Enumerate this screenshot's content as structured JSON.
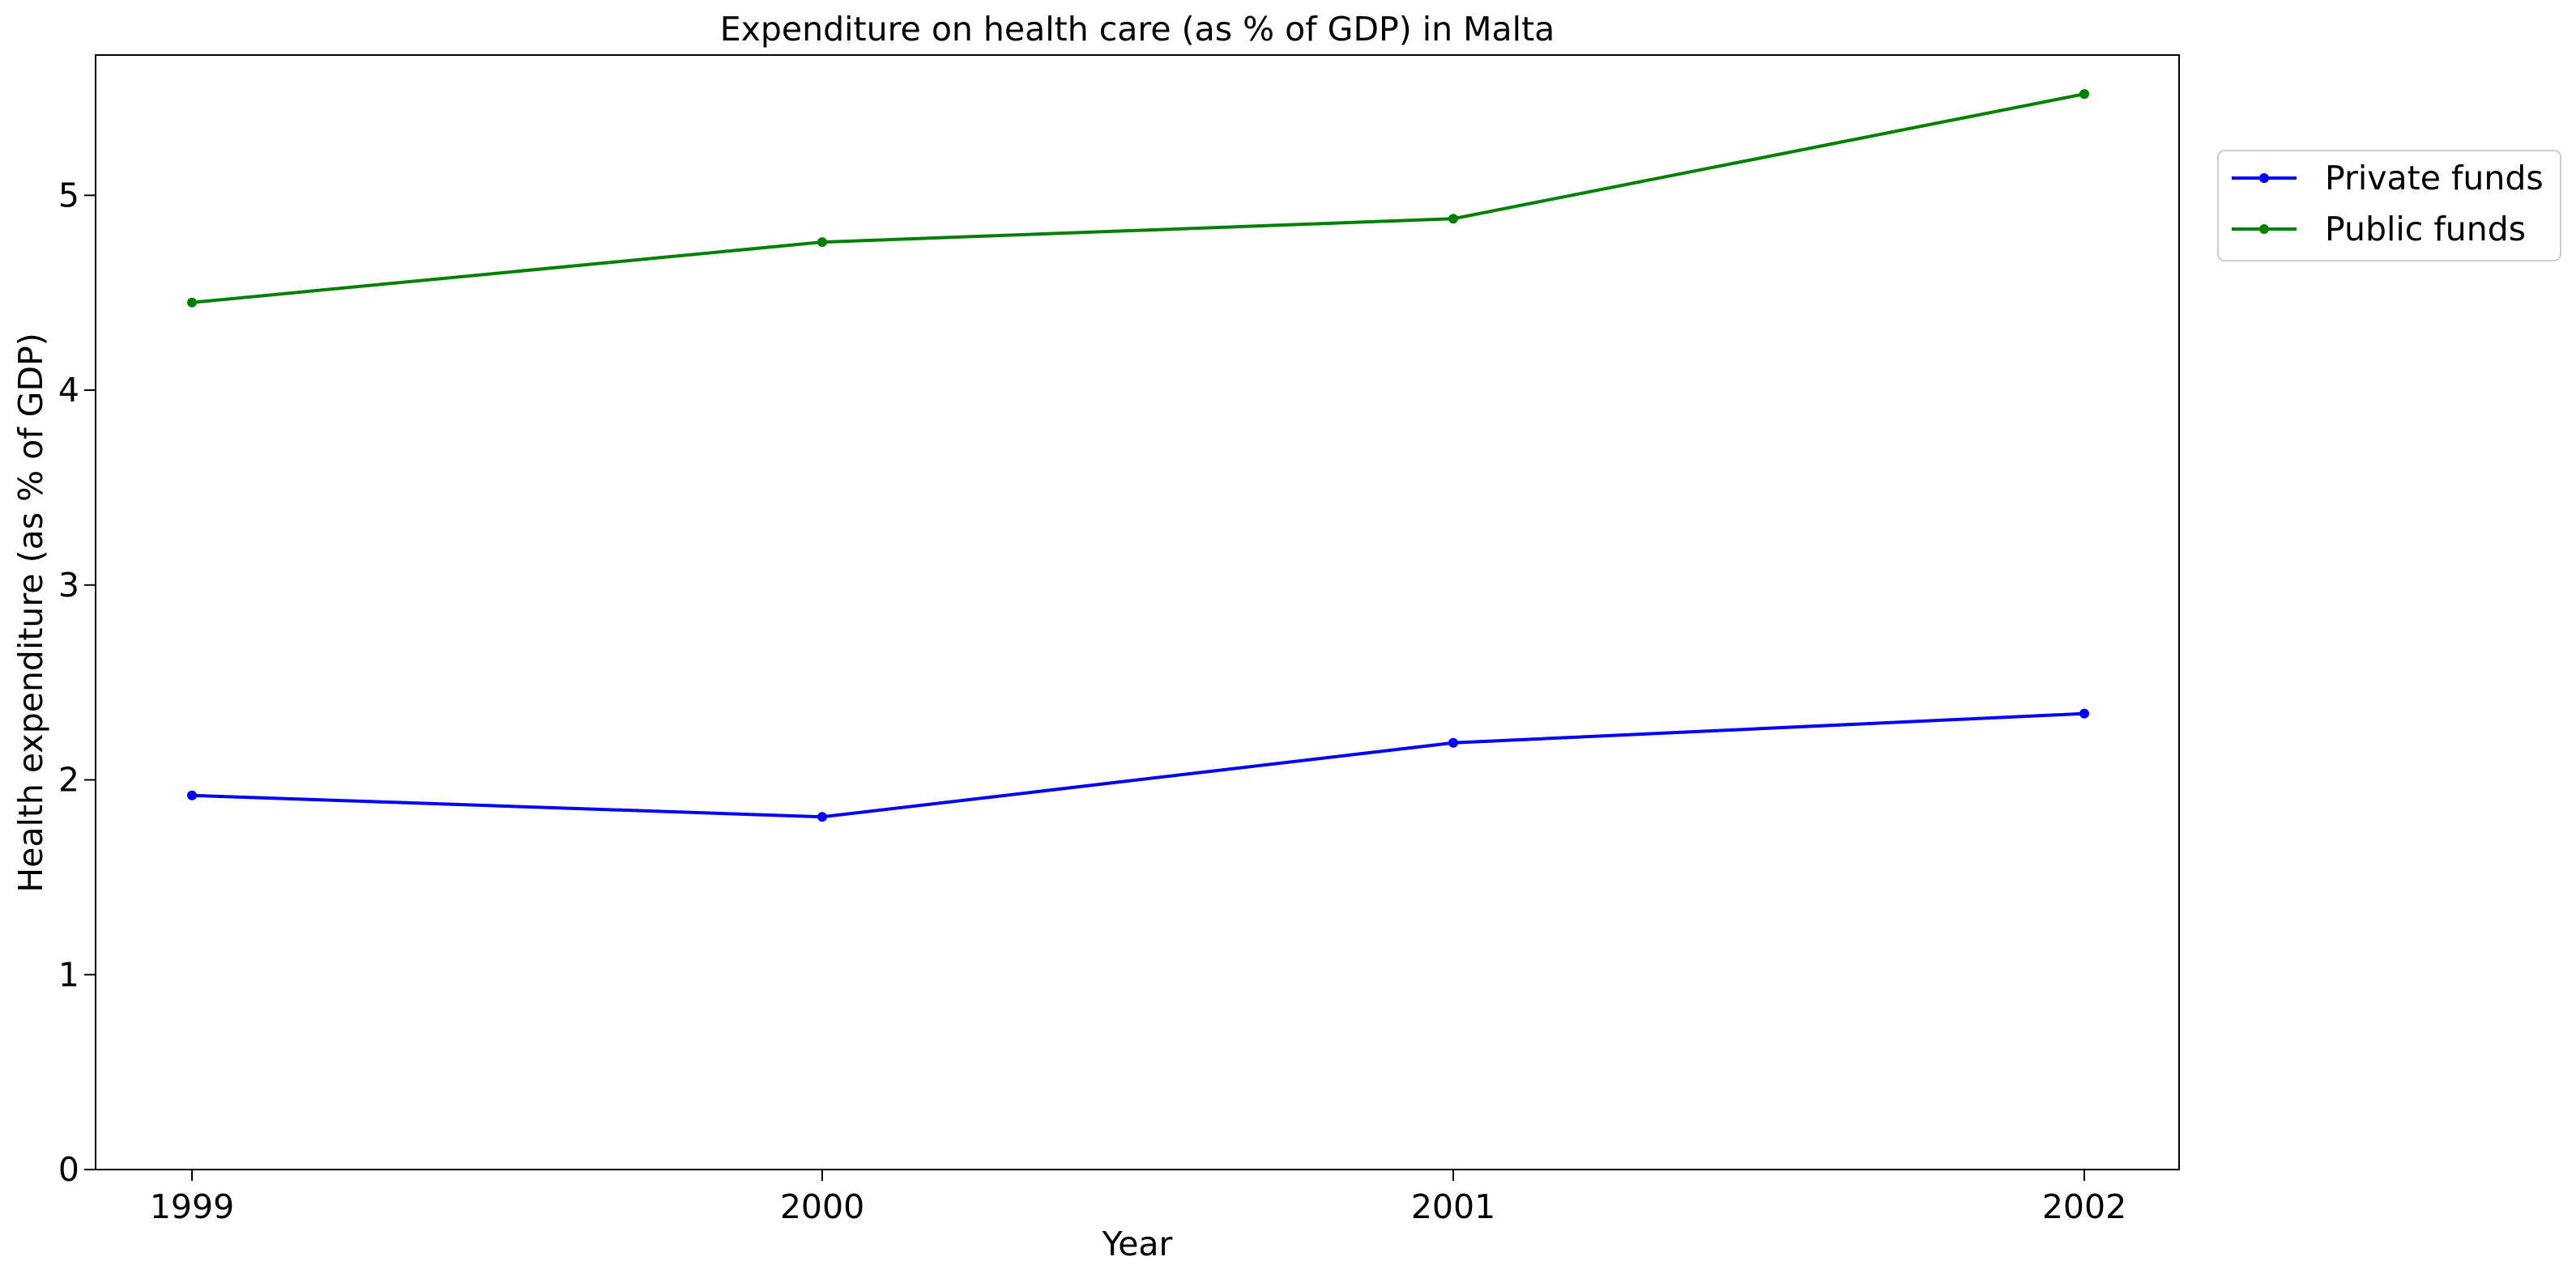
{
  "chart_data": {
    "type": "line",
    "title": "Expenditure on health care (as % of GDP) in Malta",
    "xlabel": "Year",
    "ylabel": "Health expenditure (as % of GDP)",
    "x": [
      "1999",
      "2000",
      "2001",
      "2002"
    ],
    "x_ticks": [
      "1999",
      "2000",
      "2001",
      "2002"
    ],
    "y_ticks": [
      "0",
      "1",
      "2",
      "3",
      "4",
      "5"
    ],
    "ylim": [
      0,
      5.72
    ],
    "grid": false,
    "legend_position": "top-right, outside plot area",
    "series": [
      {
        "name": "Private funds",
        "color": "#0000ff",
        "values": [
          1.92,
          1.81,
          2.19,
          2.34
        ]
      },
      {
        "name": "Public funds",
        "color": "#008000",
        "values": [
          4.45,
          4.76,
          4.88,
          5.52
        ]
      }
    ]
  }
}
